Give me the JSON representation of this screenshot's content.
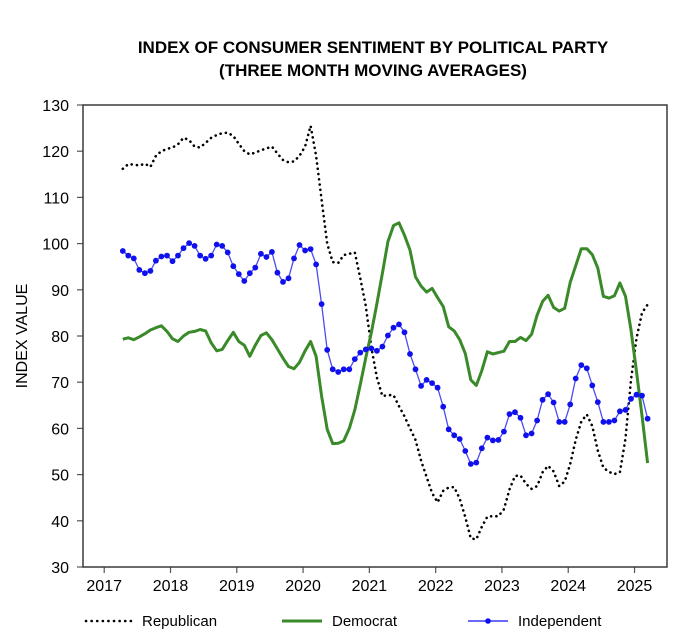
{
  "chart_data": {
    "type": "line",
    "title": [
      "INDEX OF CONSUMER SENTIMENT BY POLITICAL PARTY",
      "(THREE MONTH MOVING AVERAGES)"
    ],
    "xlabel": "",
    "ylabel": "INDEX VALUE",
    "xlim": [
      2016.68,
      2025.49
    ],
    "ylim": [
      30,
      130
    ],
    "yticks": [
      30,
      40,
      50,
      60,
      70,
      80,
      90,
      100,
      110,
      120,
      130
    ],
    "xticks": [
      2017,
      2018,
      2019,
      2020,
      2021,
      2022,
      2023,
      2024,
      2025
    ],
    "grid": false,
    "legend_position": "bottom",
    "x_start": 2017.28,
    "x_step_months": 1,
    "series": [
      {
        "name": "Republican",
        "color": "#000000",
        "style": "dotted",
        "values": [
          116.2,
          117.2,
          117.1,
          116.9,
          117.3,
          116.6,
          119.0,
          120.0,
          120.5,
          120.8,
          121.5,
          122.9,
          122.4,
          121.0,
          120.8,
          121.8,
          122.9,
          123.5,
          123.9,
          124.0,
          123.3,
          121.6,
          120.0,
          119.3,
          119.7,
          120.2,
          120.6,
          121.0,
          119.5,
          118.1,
          117.6,
          117.8,
          119.0,
          121.0,
          125.5,
          119.0,
          109.5,
          100.0,
          96.0,
          95.8,
          97.5,
          97.8,
          98.1,
          92.5,
          86.5,
          77.5,
          71.0,
          67.0,
          67.2,
          67.2,
          64.8,
          62.6,
          60.0,
          57.5,
          53.0,
          49.5,
          46.0,
          44.0,
          46.5,
          47.2,
          47.3,
          44.8,
          40.8,
          36.2,
          36.0,
          38.7,
          40.9,
          41.0,
          41.0,
          42.5,
          46.8,
          49.7,
          49.8,
          48.0,
          46.9,
          47.5,
          50.5,
          51.9,
          50.7,
          47.5,
          48.5,
          52.3,
          57.5,
          61.5,
          63.0,
          60.5,
          55.2,
          51.5,
          50.6,
          50.1,
          50.5,
          57.8,
          70.5,
          79.5,
          85.0,
          86.8
        ]
      },
      {
        "name": "Democrat",
        "color": "#3a8a2a",
        "style": "solid",
        "values": [
          79.3,
          79.6,
          79.2,
          79.8,
          80.5,
          81.3,
          81.8,
          82.2,
          81.0,
          79.4,
          78.8,
          80.0,
          80.8,
          81.0,
          81.4,
          81.1,
          78.5,
          76.8,
          77.1,
          79.0,
          80.8,
          78.8,
          78.0,
          75.6,
          78.0,
          80.1,
          80.7,
          79.2,
          77.2,
          75.2,
          73.4,
          72.9,
          74.3,
          76.8,
          78.8,
          75.6,
          67.0,
          59.8,
          56.7,
          56.8,
          57.3,
          60.0,
          64.0,
          69.5,
          75.3,
          80.8,
          87.0,
          93.6,
          100.4,
          103.9,
          104.5,
          101.8,
          98.6,
          92.8,
          90.8,
          89.5,
          90.3,
          88.3,
          86.4,
          82.0,
          81.1,
          79.2,
          76.2,
          70.5,
          69.3,
          72.5,
          76.6,
          76.1,
          76.4,
          76.7,
          78.8,
          78.8,
          79.7,
          79.0,
          80.4,
          84.5,
          87.5,
          88.8,
          86.2,
          85.4,
          86.0,
          91.6,
          95.2,
          98.9,
          98.9,
          97.6,
          94.7,
          88.6,
          88.2,
          88.7,
          91.5,
          88.6,
          81.3,
          72.3,
          62.8,
          52.5
        ]
      },
      {
        "name": "Independent",
        "color": "#1010ee",
        "style": "solid-markers",
        "values": [
          98.4,
          97.4,
          96.8,
          94.3,
          93.6,
          94.1,
          96.3,
          97.2,
          97.4,
          96.2,
          97.4,
          99.0,
          100.1,
          99.5,
          97.4,
          96.7,
          97.4,
          99.8,
          99.5,
          98.1,
          95.1,
          93.4,
          91.9,
          93.6,
          94.8,
          97.8,
          97.1,
          98.2,
          93.7,
          91.7,
          92.5,
          96.8,
          99.7,
          98.5,
          98.8,
          95.5,
          86.9,
          77.0,
          72.8,
          72.2,
          72.8,
          72.8,
          75.0,
          76.4,
          77.1,
          77.3,
          76.8,
          77.7,
          80.1,
          81.8,
          82.5,
          80.8,
          76.1,
          72.8,
          69.2,
          70.5,
          69.8,
          68.8,
          64.7,
          59.8,
          58.5,
          57.7,
          55.1,
          52.3,
          52.6,
          55.7,
          58.0,
          57.4,
          57.5,
          59.3,
          63.1,
          63.5,
          62.3,
          58.5,
          58.9,
          61.7,
          66.2,
          67.4,
          65.6,
          61.4,
          61.4,
          65.2,
          70.8,
          73.7,
          73.0,
          69.3,
          65.7,
          61.4,
          61.4,
          61.7,
          63.7,
          64.0,
          66.4,
          67.3,
          67.1,
          62.1
        ]
      }
    ]
  },
  "legend": {
    "items": [
      {
        "label": "Republican"
      },
      {
        "label": "Democrat"
      },
      {
        "label": "Independent"
      }
    ]
  }
}
